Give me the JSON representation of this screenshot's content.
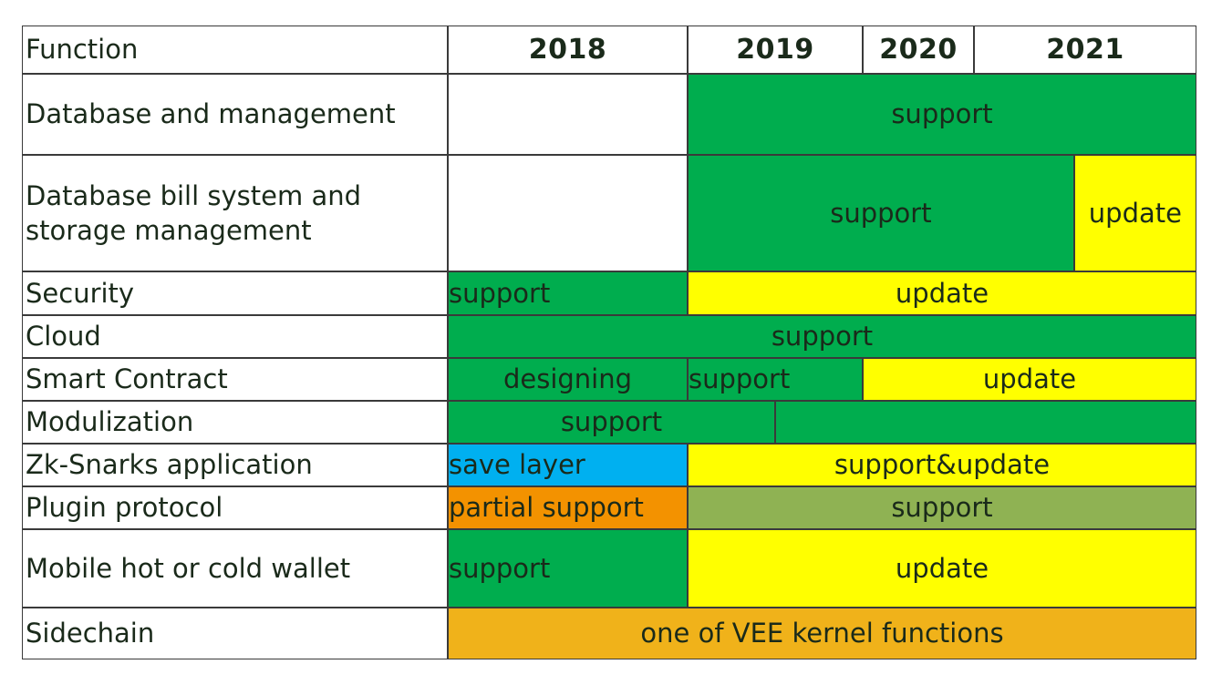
{
  "header": {
    "function": "Function",
    "years": [
      "2018",
      "2019",
      "2020",
      "2021"
    ]
  },
  "colors": {
    "green": "#00ad4e",
    "yellow": "#ffff00",
    "blue": "#00b0f0",
    "orange": "#f39200",
    "olive": "#8fb253",
    "gold": "#f0b21a",
    "white": "#ffffff"
  },
  "rows": [
    {
      "name": "Database and management",
      "segments": [
        {
          "from": 0,
          "to": 1,
          "label": "",
          "color": "white"
        },
        {
          "from": 1,
          "to": 4,
          "label": "support",
          "color": "green"
        }
      ]
    },
    {
      "name": "Database bill system and storage management",
      "segments": [
        {
          "from": 0,
          "to": 1,
          "label": "",
          "color": "white"
        },
        {
          "from": 1,
          "to": 3.45,
          "label": "support",
          "color": "green"
        },
        {
          "from": 3.45,
          "to": 4,
          "label": "update",
          "color": "yellow"
        }
      ]
    },
    {
      "name": "Security",
      "segments": [
        {
          "from": 0,
          "to": 1,
          "label": "support",
          "color": "green",
          "align": "left"
        },
        {
          "from": 1,
          "to": 4,
          "label": "update",
          "color": "yellow"
        }
      ]
    },
    {
      "name": "Cloud",
      "segments": [
        {
          "from": 0,
          "to": 4,
          "label": "support",
          "color": "green"
        }
      ]
    },
    {
      "name": "Smart Contract",
      "segments": [
        {
          "from": 0,
          "to": 1,
          "label": "designing",
          "color": "green"
        },
        {
          "from": 1,
          "to": 2,
          "label": "support",
          "color": "green",
          "align": "left"
        },
        {
          "from": 2,
          "to": 4,
          "label": "update",
          "color": "yellow"
        }
      ]
    },
    {
      "name": "Modulization",
      "segments": [
        {
          "from": 0,
          "to": 1.5,
          "label": "support",
          "color": "green"
        },
        {
          "from": 1.5,
          "to": 4,
          "label": "",
          "color": "green"
        }
      ]
    },
    {
      "name": "Zk-Snarks application",
      "segments": [
        {
          "from": 0,
          "to": 1,
          "label": "save layer",
          "color": "blue",
          "align": "left"
        },
        {
          "from": 1,
          "to": 4,
          "label": "support&update",
          "color": "yellow"
        }
      ]
    },
    {
      "name": "Plugin protocol",
      "segments": [
        {
          "from": 0,
          "to": 1,
          "label": "partial support",
          "color": "orange",
          "align": "left"
        },
        {
          "from": 1,
          "to": 4,
          "label": "support",
          "color": "olive"
        }
      ]
    },
    {
      "name": "Mobile hot or cold wallet",
      "segments": [
        {
          "from": 0,
          "to": 1,
          "label": "support",
          "color": "green",
          "align": "left"
        },
        {
          "from": 1,
          "to": 4,
          "label": "update",
          "color": "yellow"
        }
      ]
    },
    {
      "name": "Sidechain",
      "segments": [
        {
          "from": 0,
          "to": 4,
          "label": "one of VEE kernel  functions",
          "color": "gold"
        }
      ]
    }
  ]
}
